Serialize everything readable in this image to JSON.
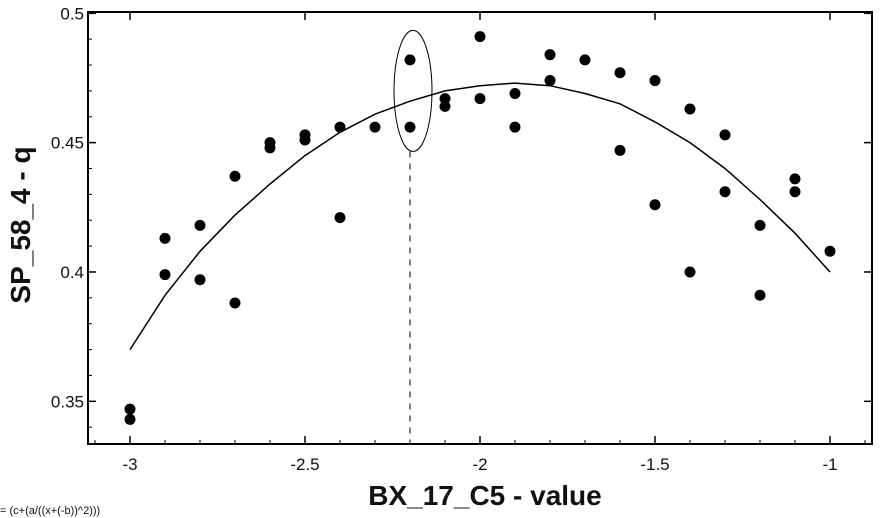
{
  "chart_data": {
    "type": "scatter",
    "title": "",
    "xlabel": "BX_17_C5 - value",
    "ylabel": "SP_58_4 - q",
    "xlim": [
      -3.12,
      -0.88
    ],
    "ylim": [
      0.3335,
      0.5005
    ],
    "x_ticks": [
      -3,
      -2.5,
      -2,
      -1.5,
      -1
    ],
    "x_tick_labels": [
      "-3",
      "-2.5",
      "-2",
      "-1.5",
      "-1"
    ],
    "y_ticks": [
      0.35,
      0.4,
      0.45,
      0.5
    ],
    "y_tick_labels": [
      "0.35",
      "0.4",
      "0.45",
      "0.5"
    ],
    "grid": false,
    "legend": "none",
    "formula": "= (c+(a/((x+(-b))^2)))",
    "points": [
      {
        "x": -3.0,
        "y": 0.347
      },
      {
        "x": -3.0,
        "y": 0.343
      },
      {
        "x": -2.9,
        "y": 0.413
      },
      {
        "x": -2.9,
        "y": 0.399
      },
      {
        "x": -2.8,
        "y": 0.418
      },
      {
        "x": -2.8,
        "y": 0.397
      },
      {
        "x": -2.7,
        "y": 0.437
      },
      {
        "x": -2.7,
        "y": 0.388
      },
      {
        "x": -2.6,
        "y": 0.45
      },
      {
        "x": -2.6,
        "y": 0.448
      },
      {
        "x": -2.5,
        "y": 0.453
      },
      {
        "x": -2.5,
        "y": 0.451
      },
      {
        "x": -2.4,
        "y": 0.456
      },
      {
        "x": -2.4,
        "y": 0.421
      },
      {
        "x": -2.3,
        "y": 0.456
      },
      {
        "x": -2.2,
        "y": 0.482
      },
      {
        "x": -2.2,
        "y": 0.456
      },
      {
        "x": -2.1,
        "y": 0.467
      },
      {
        "x": -2.1,
        "y": 0.464
      },
      {
        "x": -2.0,
        "y": 0.491
      },
      {
        "x": -2.0,
        "y": 0.467
      },
      {
        "x": -1.9,
        "y": 0.469
      },
      {
        "x": -1.9,
        "y": 0.456
      },
      {
        "x": -1.8,
        "y": 0.484
      },
      {
        "x": -1.8,
        "y": 0.474
      },
      {
        "x": -1.7,
        "y": 0.482
      },
      {
        "x": -1.6,
        "y": 0.477
      },
      {
        "x": -1.6,
        "y": 0.447
      },
      {
        "x": -1.5,
        "y": 0.474
      },
      {
        "x": -1.5,
        "y": 0.426
      },
      {
        "x": -1.4,
        "y": 0.463
      },
      {
        "x": -1.4,
        "y": 0.4
      },
      {
        "x": -1.3,
        "y": 0.453
      },
      {
        "x": -1.3,
        "y": 0.431
      },
      {
        "x": -1.2,
        "y": 0.418
      },
      {
        "x": -1.2,
        "y": 0.391
      },
      {
        "x": -1.1,
        "y": 0.436
      },
      {
        "x": -1.1,
        "y": 0.431
      },
      {
        "x": -1.0,
        "y": 0.408
      }
    ],
    "fit_curve": {
      "x": [
        -3.0,
        -2.9,
        -2.8,
        -2.7,
        -2.6,
        -2.5,
        -2.4,
        -2.3,
        -2.2,
        -2.1,
        -2.0,
        -1.9,
        -1.8,
        -1.7,
        -1.6,
        -1.5,
        -1.4,
        -1.3,
        -1.2,
        -1.1,
        -1.0
      ],
      "y": [
        0.37,
        0.391,
        0.408,
        0.422,
        0.434,
        0.445,
        0.454,
        0.461,
        0.466,
        0.47,
        0.472,
        0.473,
        0.472,
        0.469,
        0.465,
        0.458,
        0.45,
        0.44,
        0.428,
        0.415,
        0.4
      ]
    },
    "annotation": {
      "type": "ellipse-highlight",
      "x": -2.2,
      "y_range": [
        0.452,
        0.488
      ],
      "dashed_line_x": -2.2
    },
    "colors": {
      "points": "#000000",
      "curve": "#000000",
      "axes": "#000000"
    }
  }
}
